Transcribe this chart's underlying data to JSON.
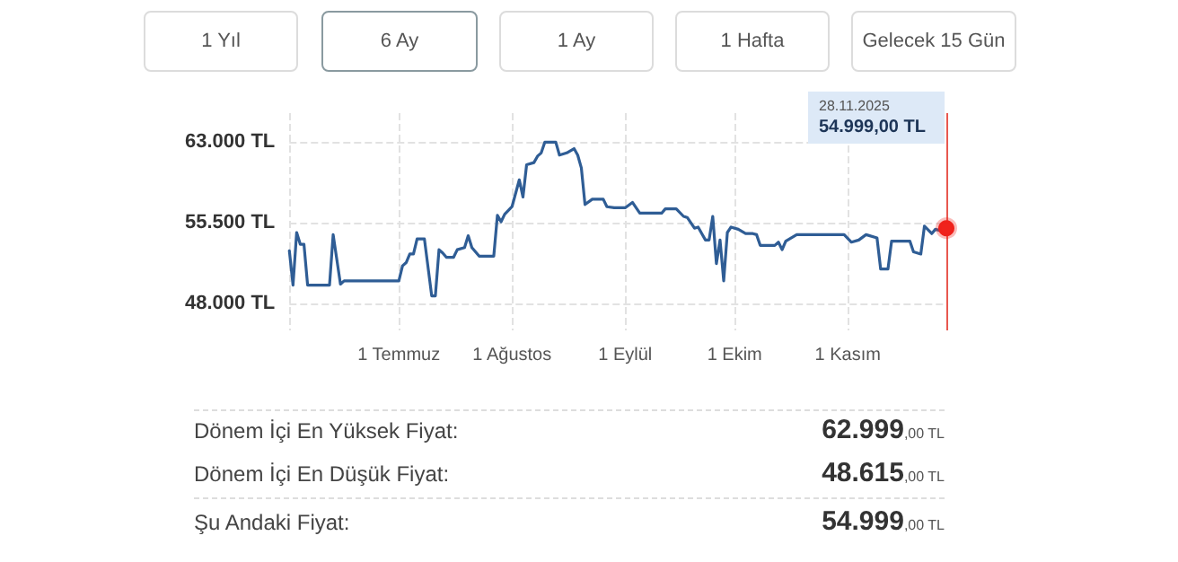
{
  "chart_data": {
    "type": "line",
    "x": [
      "2025-06-01",
      "2025-06-02",
      "2025-06-03",
      "2025-06-04",
      "2025-06-05",
      "2025-06-06",
      "2025-06-12",
      "2025-06-13",
      "2025-06-15",
      "2025-06-16",
      "2025-07-01",
      "2025-07-02",
      "2025-07-03",
      "2025-07-04",
      "2025-07-05",
      "2025-07-06",
      "2025-07-08",
      "2025-07-10",
      "2025-07-11",
      "2025-07-12",
      "2025-07-13",
      "2025-07-14",
      "2025-07-16",
      "2025-07-17",
      "2025-07-19",
      "2025-07-20",
      "2025-07-21",
      "2025-07-23",
      "2025-07-27",
      "2025-07-28",
      "2025-07-29",
      "2025-07-30",
      "2025-08-01",
      "2025-08-03",
      "2025-08-04",
      "2025-08-05",
      "2025-08-07",
      "2025-08-08",
      "2025-08-09",
      "2025-08-10",
      "2025-08-13",
      "2025-08-14",
      "2025-08-16",
      "2025-08-18",
      "2025-08-19",
      "2025-08-20",
      "2025-08-21",
      "2025-08-23",
      "2025-08-26",
      "2025-08-27",
      "2025-08-29",
      "2025-09-01",
      "2025-09-03",
      "2025-09-05",
      "2025-09-11",
      "2025-09-12",
      "2025-09-15",
      "2025-09-17",
      "2025-09-18",
      "2025-09-20",
      "2025-09-21",
      "2025-09-22",
      "2025-09-23",
      "2025-09-24",
      "2025-09-25",
      "2025-09-26",
      "2025-09-27",
      "2025-09-28",
      "2025-09-29",
      "2025-09-30",
      "2025-10-02",
      "2025-10-04",
      "2025-10-06",
      "2025-10-07",
      "2025-10-08",
      "2025-10-12",
      "2025-10-13",
      "2025-10-14",
      "2025-10-15",
      "2025-10-18",
      "2025-10-31",
      "2025-11-02",
      "2025-11-04",
      "2025-11-06",
      "2025-11-09",
      "2025-11-10",
      "2025-11-12",
      "2025-11-13",
      "2025-11-18",
      "2025-11-19",
      "2025-11-21",
      "2025-11-22",
      "2025-11-24",
      "2025-11-25",
      "2025-11-26",
      "2025-11-28"
    ],
    "series": [
      {
        "color": "#2f5d95",
        "values": [
          52900,
          49700,
          54600,
          53500,
          53500,
          49700,
          49700,
          54400,
          49800,
          50100,
          50100,
          51500,
          51800,
          52600,
          52600,
          54000,
          54000,
          48700,
          48700,
          53000,
          52700,
          52300,
          52300,
          53000,
          53200,
          54300,
          53200,
          52400,
          52400,
          56200,
          55600,
          56300,
          57000,
          59500,
          57900,
          60900,
          61100,
          61700,
          62000,
          63000,
          63000,
          61800,
          62000,
          62400,
          61800,
          60600,
          57200,
          57700,
          57700,
          57000,
          56900,
          56900,
          57400,
          56400,
          56400,
          56800,
          56800,
          56100,
          56000,
          55000,
          55100,
          54500,
          53900,
          53900,
          56100,
          51700,
          53900,
          50100,
          54600,
          55100,
          54900,
          54500,
          54500,
          54400,
          53400,
          53400,
          53700,
          53000,
          53800,
          54400,
          54400,
          53700,
          53900,
          54400,
          54100,
          51200,
          51200,
          53800,
          53800,
          52800,
          52600,
          55200,
          54500,
          54900,
          54800,
          54999
        ]
      }
    ],
    "xlim": [
      "2025-06-01",
      "2025-11-28"
    ],
    "xticks": [
      {
        "value": "2025-06-01",
        "label": null
      },
      {
        "value": "2025-07-01",
        "label": "1 Temmuz"
      },
      {
        "value": "2025-08-01",
        "label": "1 Ağustos"
      },
      {
        "value": "2025-09-01",
        "label": "1 Eylül"
      },
      {
        "value": "2025-10-01",
        "label": "1 Ekim"
      },
      {
        "value": "2025-11-01",
        "label": "1 Kasım"
      }
    ],
    "ylim": [
      45500,
      65700
    ],
    "yticks": [
      {
        "value": 48000,
        "label": "48.000 TL"
      },
      {
        "value": 55500,
        "label": "55.500 TL"
      },
      {
        "value": 63000,
        "label": "63.000 TL"
      }
    ],
    "grid": true,
    "marker": "none",
    "line_style": "solid",
    "ref_lines": [
      {
        "axis": "x",
        "value": "2025-11-28",
        "color": "#e8574f"
      }
    ],
    "annotations": [
      "1 Yıl",
      "6 Ay",
      "1 Ay",
      "1 Hafta",
      "Gelecek 15 Gün",
      "28.11.2025\n54.999,00 TL",
      "Dönem İçi En Yüksek Fiyat:",
      "62.999,00 TL",
      "Dönem İçi En Düşük Fiyat:",
      "48.615,00 TL",
      "Şu Andaki Fiyat:",
      "54.999,00 TL"
    ]
  }
}
